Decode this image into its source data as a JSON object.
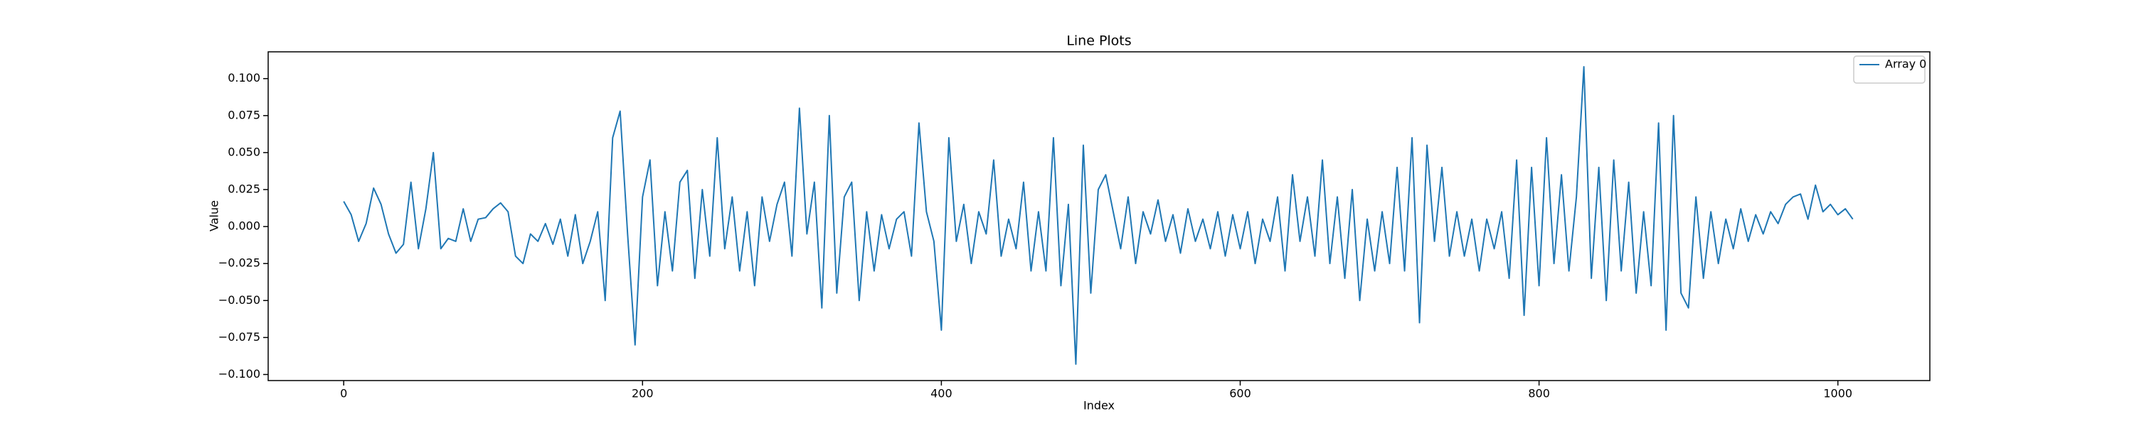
{
  "chart_data": {
    "type": "line",
    "title": "Line Plots",
    "xlabel": "Index",
    "ylabel": "Value",
    "legend": "upper right",
    "grid": false,
    "xlim": [
      -50.55,
      1061.55
    ],
    "xticks": [
      0,
      200,
      400,
      600,
      800,
      1000
    ],
    "ylim": [
      -0.1041,
      0.1181
    ],
    "yticks": [
      {
        "value": -0.1,
        "label": "−0.100"
      },
      {
        "value": -0.075,
        "label": "−0.075"
      },
      {
        "value": -0.05,
        "label": "−0.050"
      },
      {
        "value": -0.025,
        "label": "−0.025"
      },
      {
        "value": 0,
        "label": "0.000"
      },
      {
        "value": 0.025,
        "label": "0.025"
      },
      {
        "value": 0.05,
        "label": "0.050"
      },
      {
        "value": 0.075,
        "label": "0.075"
      },
      {
        "value": 0.1,
        "label": "0.100"
      }
    ],
    "x": [
      0,
      5,
      10,
      15,
      20,
      25,
      30,
      35,
      40,
      45,
      50,
      55,
      60,
      65,
      70,
      75,
      80,
      85,
      90,
      95,
      100,
      105,
      110,
      115,
      120,
      125,
      130,
      135,
      140,
      145,
      150,
      155,
      160,
      165,
      170,
      175,
      180,
      185,
      190,
      195,
      200,
      205,
      210,
      215,
      220,
      225,
      230,
      235,
      240,
      245,
      250,
      255,
      260,
      265,
      270,
      275,
      280,
      285,
      290,
      295,
      300,
      305,
      310,
      315,
      320,
      325,
      330,
      335,
      340,
      345,
      350,
      355,
      360,
      365,
      370,
      375,
      380,
      385,
      390,
      395,
      400,
      405,
      410,
      415,
      420,
      425,
      430,
      435,
      440,
      445,
      450,
      455,
      460,
      465,
      470,
      475,
      480,
      485,
      490,
      495,
      500,
      505,
      510,
      515,
      520,
      525,
      530,
      535,
      540,
      545,
      550,
      555,
      560,
      565,
      570,
      575,
      580,
      585,
      590,
      595,
      600,
      605,
      610,
      615,
      620,
      625,
      630,
      635,
      640,
      645,
      650,
      655,
      660,
      665,
      670,
      675,
      680,
      685,
      690,
      695,
      700,
      705,
      710,
      715,
      720,
      725,
      730,
      735,
      740,
      745,
      750,
      755,
      760,
      765,
      770,
      775,
      780,
      785,
      790,
      795,
      800,
      805,
      810,
      815,
      820,
      825,
      830,
      835,
      840,
      845,
      850,
      855,
      860,
      865,
      870,
      875,
      880,
      885,
      890,
      895,
      900,
      905,
      910,
      915,
      920,
      925,
      930,
      935,
      940,
      945,
      950,
      955,
      960,
      965,
      970,
      975,
      980,
      985,
      990,
      995,
      1000,
      1005,
      1010
    ],
    "series": [
      {
        "name": "Array 0",
        "color": "#1f77b4",
        "values": [
          0.017,
          0.008,
          -0.01,
          0.002,
          0.026,
          0.015,
          -0.005,
          -0.018,
          -0.012,
          0.03,
          -0.015,
          0.012,
          0.05,
          -0.015,
          -0.008,
          -0.01,
          0.012,
          -0.01,
          0.005,
          0.006,
          0.012,
          0.016,
          0.01,
          -0.02,
          -0.025,
          -0.005,
          -0.01,
          0.002,
          -0.012,
          0.005,
          -0.02,
          0.008,
          -0.025,
          -0.01,
          0.01,
          -0.05,
          0.06,
          0.078,
          -0.005,
          -0.08,
          0.02,
          0.045,
          -0.04,
          0.01,
          -0.03,
          0.03,
          0.038,
          -0.035,
          0.025,
          -0.02,
          0.06,
          -0.015,
          0.02,
          -0.03,
          0.01,
          -0.04,
          0.02,
          -0.01,
          0.015,
          0.03,
          -0.02,
          0.08,
          -0.005,
          0.03,
          -0.055,
          0.075,
          -0.045,
          0.02,
          0.03,
          -0.05,
          0.01,
          -0.03,
          0.008,
          -0.015,
          0.005,
          0.01,
          -0.02,
          0.07,
          0.01,
          -0.01,
          -0.07,
          0.06,
          -0.01,
          0.015,
          -0.025,
          0.01,
          -0.005,
          0.045,
          -0.02,
          0.005,
          -0.015,
          0.03,
          -0.03,
          0.01,
          -0.03,
          0.06,
          -0.04,
          0.015,
          -0.093,
          0.055,
          -0.045,
          0.025,
          0.035,
          0.01,
          -0.015,
          0.02,
          -0.025,
          0.01,
          -0.005,
          0.018,
          -0.01,
          0.008,
          -0.018,
          0.012,
          -0.01,
          0.005,
          -0.015,
          0.01,
          -0.02,
          0.008,
          -0.015,
          0.01,
          -0.025,
          0.005,
          -0.01,
          0.02,
          -0.03,
          0.035,
          -0.01,
          0.02,
          -0.02,
          0.045,
          -0.025,
          0.02,
          -0.035,
          0.025,
          -0.05,
          0.005,
          -0.03,
          0.01,
          -0.025,
          0.04,
          -0.03,
          0.06,
          -0.065,
          0.055,
          -0.01,
          0.04,
          -0.02,
          0.01,
          -0.02,
          0.005,
          -0.03,
          0.005,
          -0.015,
          0.01,
          -0.035,
          0.045,
          -0.06,
          0.04,
          -0.04,
          0.06,
          -0.025,
          0.035,
          -0.03,
          0.02,
          0.108,
          -0.035,
          0.04,
          -0.05,
          0.045,
          -0.03,
          0.03,
          -0.045,
          0.01,
          -0.04,
          0.07,
          -0.07,
          0.075,
          -0.045,
          -0.055,
          0.02,
          -0.035,
          0.01,
          -0.025,
          0.005,
          -0.015,
          0.012,
          -0.01,
          0.008,
          -0.005,
          0.01,
          0.002,
          0.015,
          0.02,
          0.022,
          0.005,
          0.028,
          0.01,
          0.015,
          0.008,
          0.012,
          0.005
        ]
      }
    ]
  }
}
